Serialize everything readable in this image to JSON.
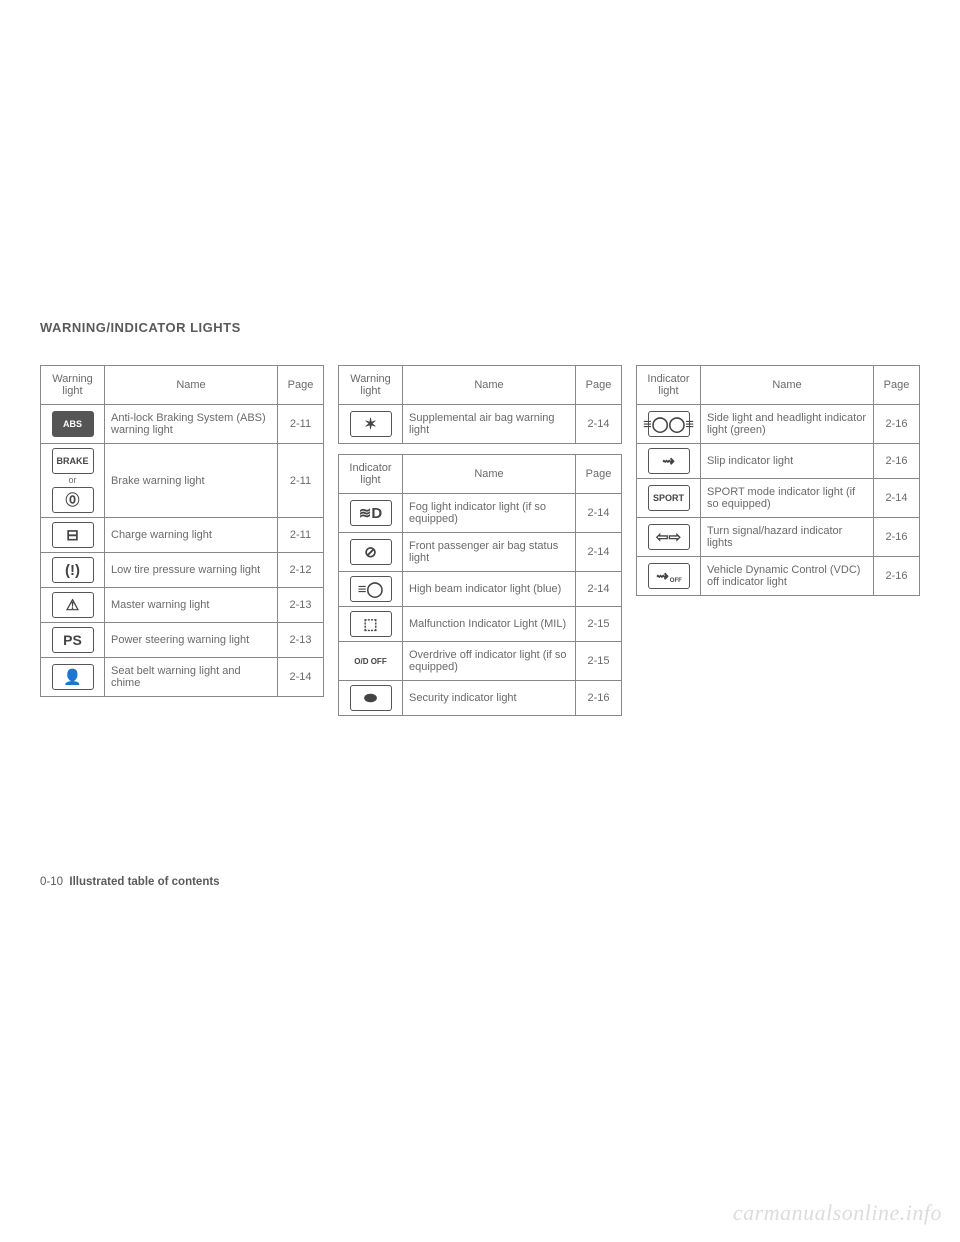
{
  "section_title": "WARNING/INDICATOR LIGHTS",
  "footer_page": "0-10",
  "footer_text": "Illustrated table of contents",
  "watermark": "carmanualsonline.info",
  "headers": {
    "warning_light": "Warning light",
    "indicator_light": "Indicator light",
    "name": "Name",
    "page": "Page"
  },
  "col1": {
    "table1": {
      "header_type": "warning_light",
      "rows": [
        {
          "icon_text": "ABS",
          "icon_style": "filled",
          "name": "Anti-lock Braking System (ABS) warning light",
          "page": "2-11"
        },
        {
          "icon_text": "BRAKE",
          "icon_style": "box",
          "extra": "or",
          "extra_glyph": "⓪",
          "name": "Brake warning light",
          "page": "2-11"
        },
        {
          "icon_glyph": "⊟",
          "name": "Charge warning light",
          "page": "2-11"
        },
        {
          "icon_glyph": "(!)",
          "name": "Low tire pressure warning light",
          "page": "2-12"
        },
        {
          "icon_glyph": "⚠",
          "name": "Master warning light",
          "page": "2-13"
        },
        {
          "icon_text": "PS",
          "icon_style": "box-big",
          "name": "Power steering warning light",
          "page": "2-13"
        },
        {
          "icon_glyph": "👤",
          "name": "Seat belt warning light and chime",
          "page": "2-14"
        }
      ]
    }
  },
  "col2": {
    "table1": {
      "header_type": "warning_light",
      "rows": [
        {
          "icon_glyph": "✶",
          "name": "Supplemental air bag warning light",
          "page": "2-14"
        }
      ]
    },
    "table2": {
      "header_type": "indicator_light",
      "rows": [
        {
          "icon_glyph": "≋D",
          "name": "Fog light indicator light (if so equipped)",
          "page": "2-14"
        },
        {
          "icon_glyph": "⊘",
          "name": "Front passenger air bag status light",
          "page": "2-14"
        },
        {
          "icon_glyph": "≡◯",
          "name": "High beam indicator light (blue)",
          "page": "2-14"
        },
        {
          "icon_glyph": "⬚",
          "name": "Malfunction Indicator Light (MIL)",
          "page": "2-15"
        },
        {
          "icon_text": "O/D OFF",
          "icon_style": "text-small",
          "name": "Overdrive off indicator light (if so equipped)",
          "page": "2-15"
        },
        {
          "icon_glyph": "⬬",
          "name": "Security indicator light",
          "page": "2-16"
        }
      ]
    }
  },
  "col3": {
    "table1": {
      "header_type": "indicator_light",
      "rows": [
        {
          "icon_glyph": "≡◯◯≡",
          "name": "Side light and headlight indicator light (green)",
          "page": "2-16"
        },
        {
          "icon_glyph": "⇝",
          "name": "Slip indicator light",
          "page": "2-16"
        },
        {
          "icon_text": "SPORT",
          "icon_style": "box",
          "name": "SPORT mode indicator light (if so equipped)",
          "page": "2-14"
        },
        {
          "icon_glyph": "⇦⇨",
          "name": "Turn signal/hazard indicator lights",
          "page": "2-16"
        },
        {
          "icon_glyph": "⇝",
          "icon_sub": "OFF",
          "name": "Vehicle Dynamic Control (VDC) off indicator light",
          "page": "2-16"
        }
      ]
    }
  }
}
